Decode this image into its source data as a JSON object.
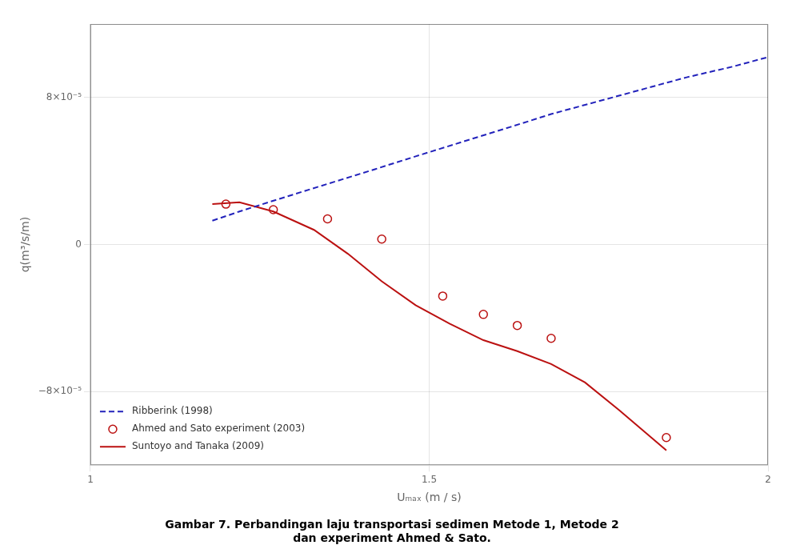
{
  "chart_data": {
    "type": "line",
    "title": "Gambar 7. Perbandingan laju transportasi sedimen Metode 1, Metode 2\ndan experiment Ahmed & Sato.",
    "x_label": "Uₘₐₓ (m / s)",
    "y_label": "q(m³/s/m)",
    "xlim": [
      1.0,
      2.0
    ],
    "ylim": [
      -0.00012,
      0.00012
    ],
    "xticks": [
      1,
      1.5,
      2
    ],
    "yticks": [
      {
        "value": -8e-05,
        "label": "−8×10⁻⁵"
      },
      0,
      {
        "value": 8e-05,
        "label": "8×10⁻⁵"
      }
    ],
    "grid": true,
    "legend": "lower left",
    "series": [
      {
        "name": "Ribberink (1998)",
        "color": "#2222bb",
        "line_style": "dashed",
        "marker": "none",
        "x": [
          1.18,
          1.22,
          1.28,
          1.35,
          1.42,
          1.48,
          1.55,
          1.62,
          1.68,
          1.75,
          1.82,
          1.88,
          1.95,
          2.0
        ],
        "values": [
          1.3e-05,
          1.8e-05,
          2.5e-05,
          3.3e-05,
          4.1e-05,
          4.8e-05,
          5.6e-05,
          6.4e-05,
          7.1e-05,
          7.8e-05,
          8.5e-05,
          9.1e-05,
          9.7e-05,
          0.000102
        ]
      },
      {
        "name": "Ahmed and Sato experiment (2003)",
        "color": "#bb1111",
        "line_style": "none",
        "marker": "o",
        "x": [
          1.2,
          1.27,
          1.35,
          1.43,
          1.52,
          1.58,
          1.63,
          1.68,
          1.85
        ],
        "values": [
          2.2e-05,
          1.9e-05,
          1.4e-05,
          3e-06,
          -2.8e-05,
          -3.8e-05,
          -4.4e-05,
          -5.1e-05,
          -0.000105
        ]
      },
      {
        "name": "Suntoyo and Tanaka (2009)",
        "color": "#bb1111",
        "line_style": "solid",
        "marker": "none",
        "x": [
          1.18,
          1.22,
          1.27,
          1.33,
          1.38,
          1.43,
          1.48,
          1.53,
          1.58,
          1.63,
          1.68,
          1.73,
          1.78,
          1.85
        ],
        "values": [
          2.2e-05,
          2.3e-05,
          1.8e-05,
          8e-06,
          -5e-06,
          -2e-05,
          -3.3e-05,
          -4.3e-05,
          -5.2e-05,
          -5.8e-05,
          -6.5e-05,
          -7.5e-05,
          -9e-05,
          -0.000112
        ]
      }
    ]
  }
}
